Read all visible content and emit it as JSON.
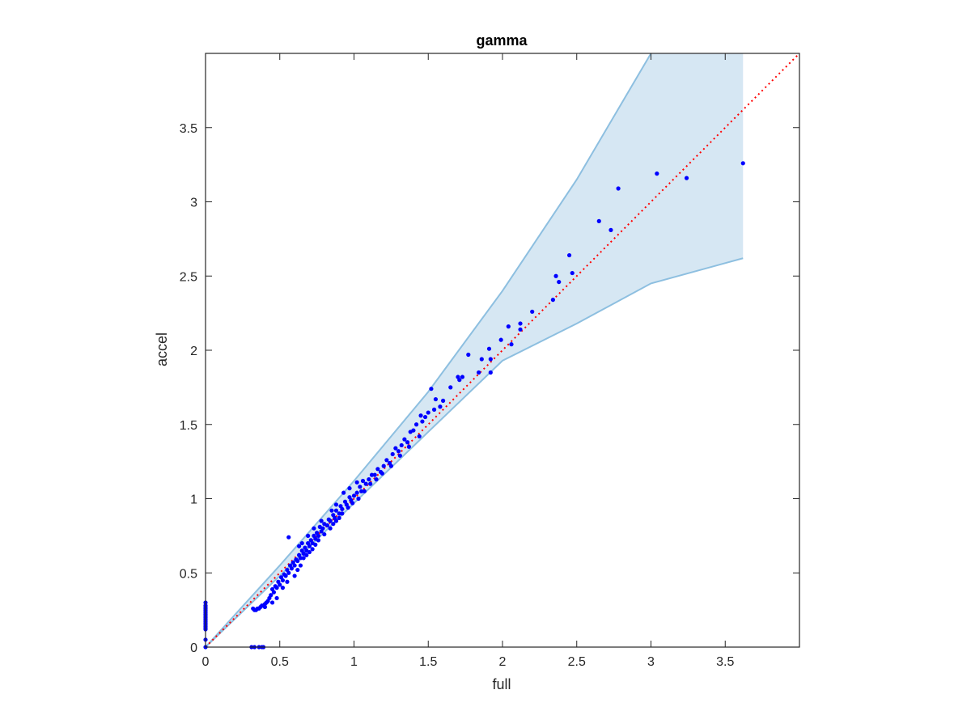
{
  "chart_data": {
    "type": "scatter",
    "title": "gamma",
    "xlabel": "full",
    "ylabel": "accel",
    "xlim": [
      0,
      4
    ],
    "ylim": [
      0,
      4
    ],
    "xticks": [
      0,
      0.5,
      1,
      1.5,
      2,
      2.5,
      3,
      3.5
    ],
    "yticks": [
      0,
      0.5,
      1,
      1.5,
      2,
      2.5,
      3,
      3.5
    ],
    "xtick_labels": [
      "0",
      "0.5",
      "1",
      "1.5",
      "2",
      "2.5",
      "3",
      "3.5"
    ],
    "ytick_labels": [
      "0",
      "0.5",
      "1",
      "1.5",
      "2",
      "2.5",
      "3",
      "3.5"
    ],
    "grid": false,
    "colors": {
      "points": "#0000ff",
      "band_fill": "#d6e7f3",
      "band_edge": "#8dbfe0",
      "reference_line": "#ff0000",
      "axes": "#262626"
    },
    "band": {
      "upper": [
        [
          0,
          0
        ],
        [
          0.5,
          0.55
        ],
        [
          1,
          1.12
        ],
        [
          1.5,
          1.72
        ],
        [
          2,
          2.4
        ],
        [
          2.5,
          3.15
        ],
        [
          3,
          4.0
        ],
        [
          3.62,
          4.0
        ]
      ],
      "lower": [
        [
          0,
          0
        ],
        [
          0.5,
          0.48
        ],
        [
          1,
          0.97
        ],
        [
          1.5,
          1.45
        ],
        [
          2,
          1.93
        ],
        [
          2.5,
          2.18
        ],
        [
          3,
          2.45
        ],
        [
          3.62,
          2.62
        ]
      ]
    },
    "reference_line": {
      "style": "dotted",
      "from": [
        0,
        0
      ],
      "to": [
        4,
        4
      ]
    },
    "points": [
      [
        3.62,
        3.26
      ],
      [
        3.24,
        3.16
      ],
      [
        3.04,
        3.19
      ],
      [
        2.78,
        3.09
      ],
      [
        2.73,
        2.81
      ],
      [
        2.65,
        2.87
      ],
      [
        2.47,
        2.52
      ],
      [
        2.45,
        2.64
      ],
      [
        2.38,
        2.46
      ],
      [
        2.36,
        2.5
      ],
      [
        2.34,
        2.34
      ],
      [
        2.2,
        2.26
      ],
      [
        2.12,
        2.18
      ],
      [
        2.12,
        2.14
      ],
      [
        2.06,
        2.04
      ],
      [
        2.04,
        2.16
      ],
      [
        1.99,
        2.07
      ],
      [
        1.92,
        1.94
      ],
      [
        1.91,
        2.01
      ],
      [
        1.92,
        1.85
      ],
      [
        1.86,
        1.94
      ],
      [
        1.84,
        1.85
      ],
      [
        1.77,
        1.97
      ],
      [
        1.73,
        1.82
      ],
      [
        1.71,
        1.8
      ],
      [
        1.7,
        1.82
      ],
      [
        1.65,
        1.75
      ],
      [
        1.6,
        1.66
      ],
      [
        1.58,
        1.62
      ],
      [
        1.55,
        1.67
      ],
      [
        1.54,
        1.6
      ],
      [
        1.52,
        1.74
      ],
      [
        1.5,
        1.58
      ],
      [
        1.48,
        1.55
      ],
      [
        1.46,
        1.52
      ],
      [
        1.45,
        1.56
      ],
      [
        1.42,
        1.5
      ],
      [
        1.4,
        1.46
      ],
      [
        1.38,
        1.45
      ],
      [
        1.36,
        1.38
      ],
      [
        1.34,
        1.4
      ],
      [
        1.32,
        1.36
      ],
      [
        1.3,
        1.32
      ],
      [
        1.28,
        1.34
      ],
      [
        1.26,
        1.3
      ],
      [
        1.24,
        1.24
      ],
      [
        1.22,
        1.26
      ],
      [
        1.2,
        1.22
      ],
      [
        1.18,
        1.18
      ],
      [
        1.16,
        1.2
      ],
      [
        1.14,
        1.16
      ],
      [
        1.12,
        1.16
      ],
      [
        1.1,
        1.13
      ],
      [
        1.08,
        1.1
      ],
      [
        1.06,
        1.12
      ],
      [
        1.05,
        1.05
      ],
      [
        1.04,
        1.08
      ],
      [
        1.02,
        1.04
      ],
      [
        1.0,
        1.02
      ],
      [
        0.98,
        0.99
      ],
      [
        0.97,
        1.01
      ],
      [
        0.95,
        0.96
      ],
      [
        0.94,
        0.98
      ],
      [
        0.92,
        0.93
      ],
      [
        0.91,
        0.95
      ],
      [
        0.9,
        0.9
      ],
      [
        0.88,
        0.92
      ],
      [
        0.87,
        0.87
      ],
      [
        0.86,
        0.89
      ],
      [
        0.84,
        0.85
      ],
      [
        0.83,
        0.86
      ],
      [
        0.82,
        0.82
      ],
      [
        0.8,
        0.83
      ],
      [
        0.79,
        0.8
      ],
      [
        0.78,
        0.78
      ],
      [
        0.77,
        0.81
      ],
      [
        0.76,
        0.75
      ],
      [
        0.75,
        0.77
      ],
      [
        0.74,
        0.73
      ],
      [
        0.73,
        0.75
      ],
      [
        0.72,
        0.7
      ],
      [
        0.71,
        0.72
      ],
      [
        0.7,
        0.68
      ],
      [
        0.69,
        0.7
      ],
      [
        0.68,
        0.65
      ],
      [
        0.67,
        0.67
      ],
      [
        0.66,
        0.63
      ],
      [
        0.65,
        0.65
      ],
      [
        0.64,
        0.6
      ],
      [
        0.63,
        0.62
      ],
      [
        0.62,
        0.58
      ],
      [
        0.61,
        0.59
      ],
      [
        0.6,
        0.55
      ],
      [
        0.59,
        0.57
      ],
      [
        0.58,
        0.53
      ],
      [
        0.57,
        0.55
      ],
      [
        0.56,
        0.5
      ],
      [
        0.55,
        0.52
      ],
      [
        0.54,
        0.48
      ],
      [
        0.53,
        0.49
      ],
      [
        0.52,
        0.45
      ],
      [
        0.51,
        0.47
      ],
      [
        0.5,
        0.42
      ],
      [
        0.49,
        0.44
      ],
      [
        0.48,
        0.4
      ],
      [
        0.47,
        0.41
      ],
      [
        0.46,
        0.37
      ],
      [
        0.45,
        0.39
      ],
      [
        0.44,
        0.35
      ],
      [
        0.43,
        0.33
      ],
      [
        0.42,
        0.31
      ],
      [
        0.41,
        0.3
      ],
      [
        0.4,
        0.29
      ],
      [
        0.38,
        0.28
      ],
      [
        0.37,
        0.27
      ],
      [
        0.36,
        0.26
      ],
      [
        0.35,
        0.26
      ],
      [
        0.34,
        0.25
      ],
      [
        0.33,
        0.25
      ],
      [
        0.32,
        0.26
      ],
      [
        0.4,
        0.27
      ],
      [
        0.45,
        0.3
      ],
      [
        0.48,
        0.33
      ],
      [
        0.52,
        0.4
      ],
      [
        0.56,
        0.74
      ],
      [
        0.55,
        0.44
      ],
      [
        0.6,
        0.48
      ],
      [
        0.62,
        0.52
      ],
      [
        0.64,
        0.55
      ],
      [
        0.66,
        0.6
      ],
      [
        0.68,
        0.62
      ],
      [
        0.7,
        0.64
      ],
      [
        0.72,
        0.66
      ],
      [
        0.74,
        0.69
      ],
      [
        0.76,
        0.72
      ],
      [
        0.8,
        0.76
      ],
      [
        0.84,
        0.8
      ],
      [
        0.86,
        0.83
      ],
      [
        0.88,
        0.85
      ],
      [
        0.9,
        0.87
      ],
      [
        0.92,
        0.9
      ],
      [
        0.96,
        0.94
      ],
      [
        0.99,
        0.97
      ],
      [
        1.03,
        1.0
      ],
      [
        1.07,
        1.05
      ],
      [
        1.11,
        1.1
      ],
      [
        1.15,
        1.13
      ],
      [
        1.19,
        1.17
      ],
      [
        1.25,
        1.22
      ],
      [
        1.31,
        1.29
      ],
      [
        1.37,
        1.35
      ],
      [
        1.44,
        1.42
      ],
      [
        0.88,
        0.96
      ],
      [
        0.93,
        1.04
      ],
      [
        0.97,
        1.07
      ],
      [
        1.02,
        1.11
      ],
      [
        0.85,
        0.92
      ],
      [
        0.78,
        0.85
      ],
      [
        0.73,
        0.8
      ],
      [
        0.69,
        0.75
      ],
      [
        0.65,
        0.7
      ],
      [
        0.63,
        0.68
      ],
      [
        0.0,
        0.3
      ],
      [
        0.0,
        0.28
      ],
      [
        0.0,
        0.27
      ],
      [
        0.0,
        0.26
      ],
      [
        0.0,
        0.25
      ],
      [
        0.0,
        0.24
      ],
      [
        0.0,
        0.23
      ],
      [
        0.0,
        0.22
      ],
      [
        0.0,
        0.21
      ],
      [
        0.0,
        0.2
      ],
      [
        0.0,
        0.19
      ],
      [
        0.0,
        0.18
      ],
      [
        0.0,
        0.17
      ],
      [
        0.0,
        0.16
      ],
      [
        0.0,
        0.15
      ],
      [
        0.0,
        0.14
      ],
      [
        0.0,
        0.13
      ],
      [
        0.0,
        0.12
      ],
      [
        0.0,
        0.0
      ],
      [
        0.0,
        0.05
      ],
      [
        0.31,
        0.0
      ],
      [
        0.33,
        0.0
      ],
      [
        0.36,
        0.0
      ],
      [
        0.38,
        0.0
      ],
      [
        0.39,
        0.0
      ]
    ]
  }
}
